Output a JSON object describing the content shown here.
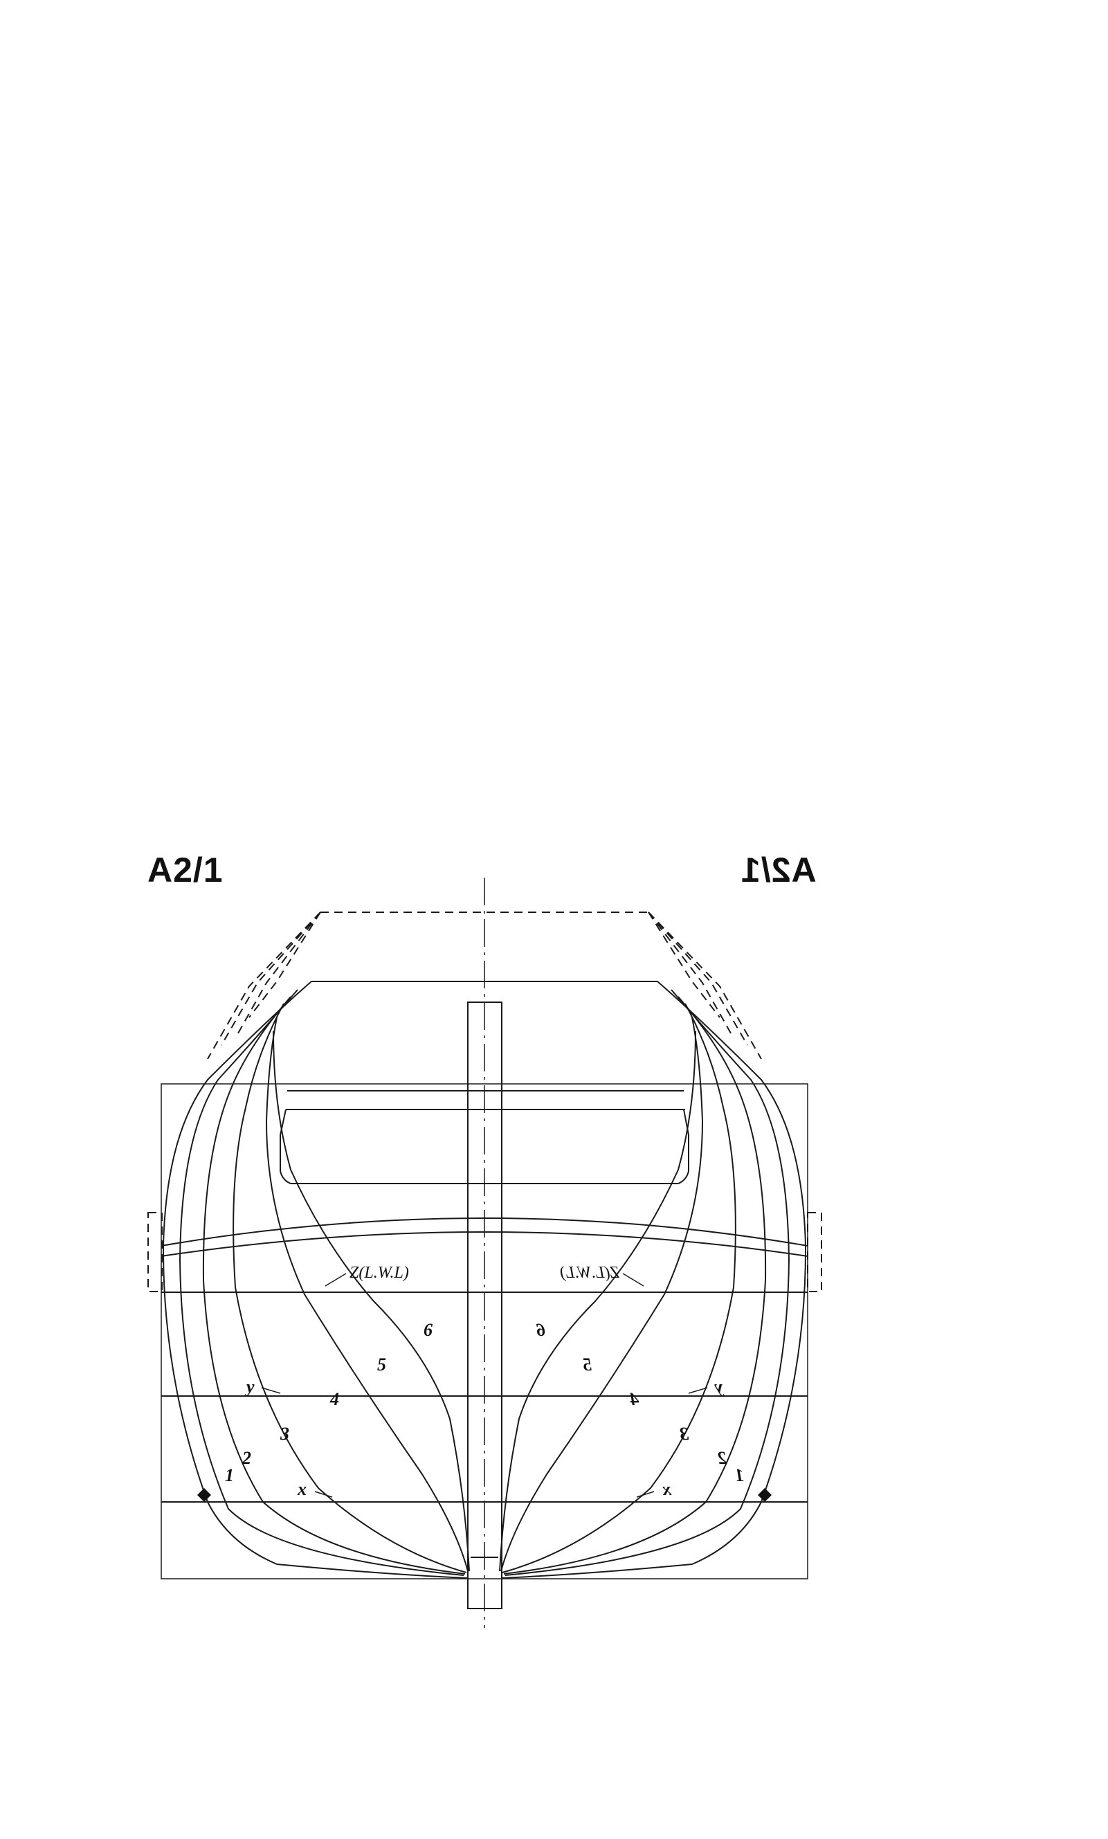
{
  "drawing": {
    "title_left": "A2/1",
    "title_right": "A2/1",
    "waterline_label_left": "Z(L.W.L)",
    "waterline_label_right": "Z(L.W.L)",
    "station_labels_left": [
      "1",
      "2",
      "3",
      "4",
      "5",
      "6"
    ],
    "station_labels_right": [
      "1",
      "2",
      "3",
      "4",
      "5",
      "6"
    ],
    "waterline_labels_left": [
      "x",
      "y"
    ],
    "waterline_labels_right": [
      "x",
      "y"
    ]
  }
}
